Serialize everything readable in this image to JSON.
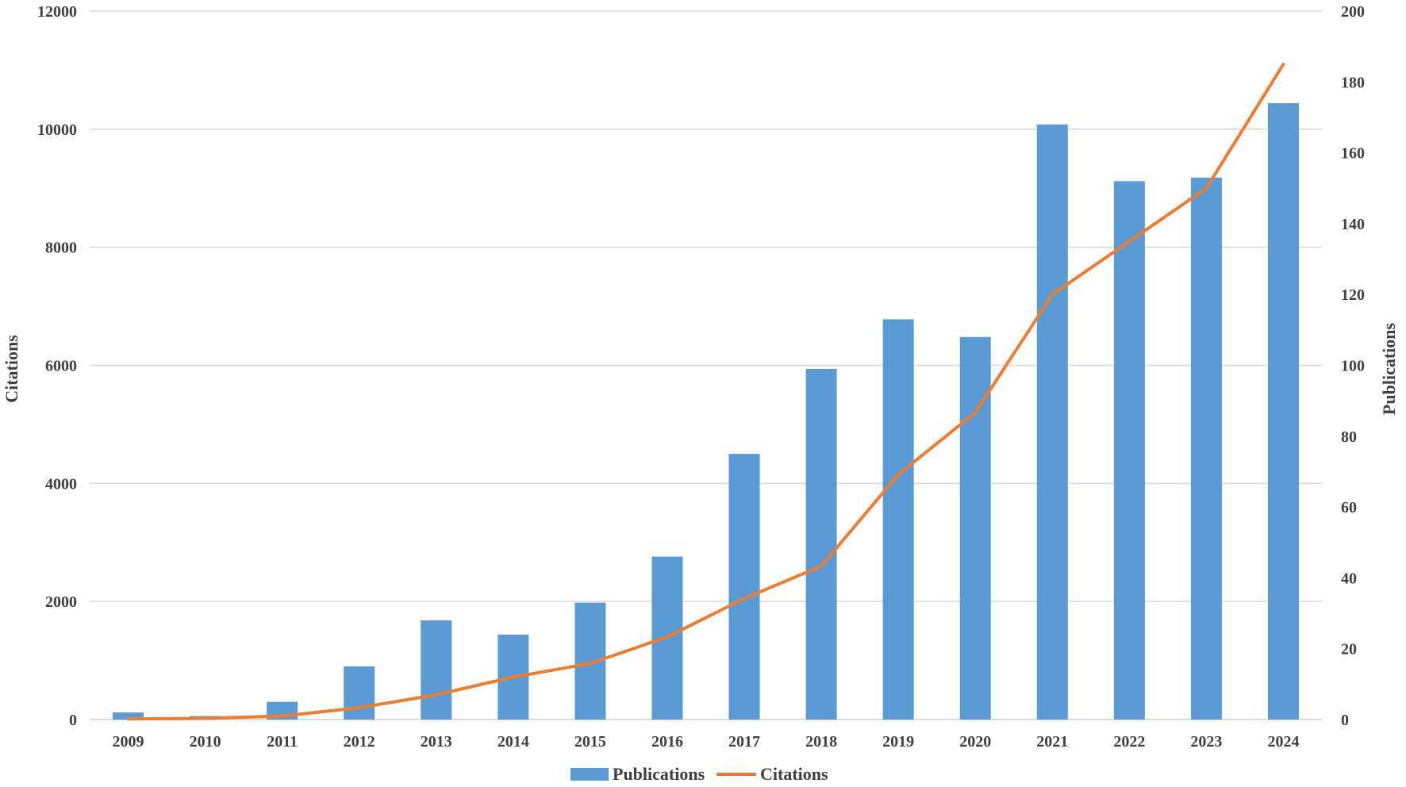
{
  "colors": {
    "bars": "#5b9bd5",
    "line": "#ed7d31",
    "grid": "#d9d9d9",
    "text": "#404040"
  },
  "chart_data": {
    "type": "bar",
    "title": "",
    "categories": [
      "2009",
      "2010",
      "2011",
      "2012",
      "2013",
      "2014",
      "2015",
      "2016",
      "2017",
      "2018",
      "2019",
      "2020",
      "2021",
      "2022",
      "2023",
      "2024"
    ],
    "left_axis": {
      "label": "Citations",
      "ylim": [
        0,
        12000
      ],
      "ticks": [
        "0",
        "2000",
        "4000",
        "6000",
        "8000",
        "10000",
        "12000"
      ]
    },
    "right_axis": {
      "label": "Publications",
      "ylim": [
        0,
        200
      ],
      "ticks": [
        "0",
        "20",
        "40",
        "60",
        "80",
        "100",
        "120",
        "140",
        "160",
        "180",
        "200"
      ]
    },
    "grid": true,
    "legend_position": "bottom",
    "series": [
      {
        "name": "Publications",
        "type": "bar",
        "axis": "right",
        "values": [
          2,
          1,
          5,
          15,
          28,
          24,
          33,
          46,
          75,
          99,
          113,
          108,
          168,
          152,
          153,
          174
        ]
      },
      {
        "name": "Citations",
        "type": "line",
        "axis": "left",
        "values": [
          10,
          20,
          60,
          200,
          420,
          720,
          950,
          1400,
          2050,
          2600,
          4150,
          5200,
          7200,
          8100,
          9000,
          11100
        ]
      }
    ]
  }
}
